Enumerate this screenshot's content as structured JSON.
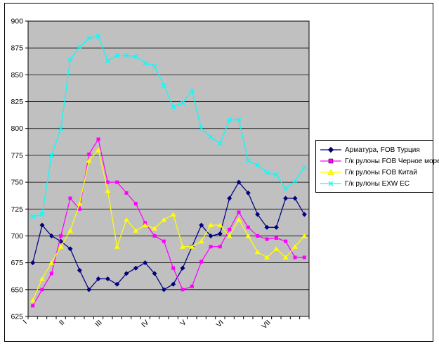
{
  "chart_data": {
    "type": "line",
    "title": "",
    "xlabel": "",
    "ylabel": "",
    "ylim": [
      625,
      900
    ],
    "ytick_step": 25,
    "y_tick_labels": [
      "625",
      "650",
      "675",
      "700",
      "725",
      "750",
      "775",
      "800",
      "825",
      "850",
      "875",
      "900"
    ],
    "categories": [
      "I",
      "II",
      "III",
      "IV",
      "V",
      "VI",
      "VII"
    ],
    "category_tick_indices": [
      0,
      4,
      8,
      13,
      17,
      21,
      26
    ],
    "points_per_series": 30,
    "grid": true,
    "plot_bg": "#C0C0C0",
    "axis_color": "#000000",
    "legend_position": "right",
    "series": [
      {
        "name": "Арматура, FOB Турция",
        "color": "#000080",
        "marker": "diamond",
        "values": [
          675,
          710,
          700,
          695,
          688,
          668,
          650,
          660,
          660,
          655,
          665,
          670,
          675,
          665,
          650,
          655,
          670,
          690,
          710,
          700,
          702,
          735,
          750,
          740,
          720,
          708,
          708,
          735,
          735,
          720
        ]
      },
      {
        "name": "Г/к рулоны FOB Черное море",
        "color": "#FF00FF",
        "marker": "square",
        "values": [
          635,
          650,
          665,
          700,
          735,
          725,
          776,
          790,
          750,
          750,
          740,
          730,
          712,
          700,
          695,
          670,
          650,
          653,
          676,
          690,
          690,
          706,
          722,
          708,
          700,
          697,
          698,
          695,
          680,
          680
        ]
      },
      {
        "name": "Г/к рулоны FOB Китай",
        "color": "#FFFF00",
        "marker": "triangle",
        "values": [
          640,
          660,
          675,
          690,
          705,
          730,
          770,
          780,
          742,
          690,
          715,
          705,
          710,
          707,
          715,
          720,
          690,
          690,
          695,
          710,
          710,
          700,
          715,
          700,
          685,
          680,
          688,
          680,
          690,
          700
        ]
      },
      {
        "name": "Г/к рулоны EXW ЕС",
        "color": "#00FFFF",
        "marker": "x",
        "values": [
          718,
          720,
          775,
          800,
          864,
          876,
          884,
          886,
          863,
          868,
          868,
          867,
          861,
          858,
          840,
          820,
          824,
          835,
          800,
          792,
          786,
          808,
          808,
          770,
          766,
          759,
          757,
          744,
          751,
          764
        ]
      }
    ]
  }
}
